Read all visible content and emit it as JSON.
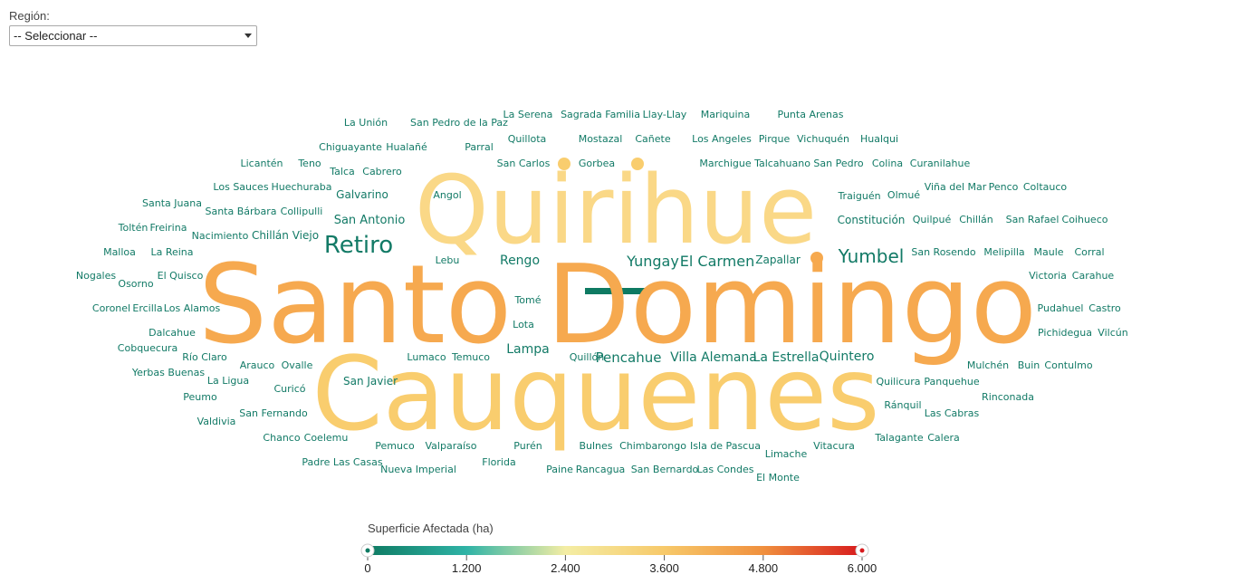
{
  "filter": {
    "label": "Región:",
    "selected": "-- Seleccionar --"
  },
  "chart_data": {
    "type": "wordcloud",
    "color_stops": [
      "#0e7a62",
      "#2fb3a6",
      "#f4eda4",
      "#f7c96a",
      "#f0903e",
      "#d7191c"
    ],
    "legend": {
      "title": "Superficie Afectada (ha)",
      "min": 0,
      "max": 6000,
      "ticks": [
        "0",
        "1.200",
        "2.400",
        "3.600",
        "4.800",
        "6.000"
      ]
    },
    "words": [
      {
        "text": "Santo Domingo",
        "size": 120,
        "color": "#f6a94f"
      },
      {
        "text": "Cauquenes",
        "size": 112,
        "color": "#f9cd6e"
      },
      {
        "text": "Quirihue",
        "size": 104,
        "color": "#fad887"
      },
      {
        "text": "Retiro",
        "size": 26,
        "color": "#127a66"
      },
      {
        "text": "Yumbel",
        "size": 20,
        "color": "#127a66"
      },
      {
        "text": "Yungay",
        "size": 16,
        "color": "#127a66"
      },
      {
        "text": "El Carmen",
        "size": 16,
        "color": "#127a66"
      },
      {
        "text": "Pencahue",
        "size": 15,
        "color": "#127a66"
      },
      {
        "text": "Rengo",
        "size": 14,
        "color": "#127a66"
      },
      {
        "text": "Villa Alemana",
        "size": 14,
        "color": "#127a66"
      },
      {
        "text": "La Estrella",
        "size": 14,
        "color": "#127a66"
      },
      {
        "text": "Quintero",
        "size": 14,
        "color": "#127a66"
      },
      {
        "text": "Lampa",
        "size": 14,
        "color": "#127a66"
      },
      {
        "text": "San Antonio",
        "size": 13,
        "color": "#127a66"
      },
      {
        "text": "Zapallar",
        "size": 12,
        "color": "#127a66"
      },
      {
        "text": "Constitución",
        "size": 12,
        "color": "#127a66"
      },
      {
        "text": "San Javier",
        "size": 12,
        "color": "#127a66"
      },
      {
        "text": "Chillán Viejo",
        "size": 12,
        "color": "#127a66"
      },
      {
        "text": "Galvarino",
        "size": 12,
        "color": "#127a66"
      },
      {
        "text": "Gorbea",
        "size": 11,
        "color": "#127a66"
      },
      {
        "text": "San Carlos",
        "size": 11,
        "color": "#127a66"
      },
      {
        "text": "Quillota",
        "size": 11,
        "color": "#127a66"
      },
      {
        "text": "Mostazal",
        "size": 11,
        "color": "#127a66"
      },
      {
        "text": "Cañete",
        "size": 11,
        "color": "#127a66"
      },
      {
        "text": "Angol",
        "size": 11,
        "color": "#127a66"
      },
      {
        "text": "Lumaco",
        "size": 11,
        "color": "#127a66"
      },
      {
        "text": "Temuco",
        "size": 11,
        "color": "#127a66"
      },
      {
        "text": "Ovalle",
        "size": 11,
        "color": "#127a66"
      },
      {
        "text": "Arauco",
        "size": 11,
        "color": "#127a66"
      },
      {
        "text": "Curicó",
        "size": 11,
        "color": "#127a66"
      },
      {
        "text": "La Ligua",
        "size": 11,
        "color": "#127a66"
      },
      {
        "text": "Río Claro",
        "size": 11,
        "color": "#127a66"
      },
      {
        "text": "Purén",
        "size": 11,
        "color": "#127a66"
      },
      {
        "text": "Bulnes",
        "size": 11,
        "color": "#127a66"
      },
      {
        "text": "Chimbarongo",
        "size": 11,
        "color": "#127a66"
      },
      {
        "text": "Isla de Pascua",
        "size": 11,
        "color": "#127a66"
      },
      {
        "text": "Vitacura",
        "size": 11,
        "color": "#127a66"
      },
      {
        "text": "Limache",
        "size": 11,
        "color": "#127a66"
      },
      {
        "text": "El Monte",
        "size": 11,
        "color": "#127a66"
      },
      {
        "text": "Quilicura",
        "size": 11,
        "color": "#127a66"
      },
      {
        "text": "Panquehue",
        "size": 11,
        "color": "#127a66"
      },
      {
        "text": "Rinconada",
        "size": 11,
        "color": "#127a66"
      },
      {
        "text": "Mulchén",
        "size": 11,
        "color": "#127a66"
      },
      {
        "text": "Buin",
        "size": 11,
        "color": "#127a66"
      },
      {
        "text": "Contulmo",
        "size": 11,
        "color": "#127a66"
      },
      {
        "text": "Ránquil",
        "size": 11,
        "color": "#127a66"
      },
      {
        "text": "Las Cabras",
        "size": 11,
        "color": "#127a66"
      },
      {
        "text": "Talagante",
        "size": 11,
        "color": "#127a66"
      },
      {
        "text": "Calera",
        "size": 11,
        "color": "#127a66"
      },
      {
        "text": "Pudahuel",
        "size": 11,
        "color": "#127a66"
      },
      {
        "text": "Castro",
        "size": 11,
        "color": "#127a66"
      },
      {
        "text": "Pichidegua",
        "size": 11,
        "color": "#127a66"
      },
      {
        "text": "Vilcún",
        "size": 11,
        "color": "#127a66"
      },
      {
        "text": "Victoria",
        "size": 11,
        "color": "#127a66"
      },
      {
        "text": "Carahue",
        "size": 11,
        "color": "#127a66"
      },
      {
        "text": "San Rosendo",
        "size": 11,
        "color": "#127a66"
      },
      {
        "text": "Melipilla",
        "size": 11,
        "color": "#127a66"
      },
      {
        "text": "Maule",
        "size": 11,
        "color": "#127a66"
      },
      {
        "text": "Corral",
        "size": 11,
        "color": "#127a66"
      },
      {
        "text": "Quilpué",
        "size": 11,
        "color": "#127a66"
      },
      {
        "text": "Chillán",
        "size": 11,
        "color": "#127a66"
      },
      {
        "text": "San Rafael",
        "size": 11,
        "color": "#127a66"
      },
      {
        "text": "Coihueco",
        "size": 11,
        "color": "#127a66"
      },
      {
        "text": "Traiguén",
        "size": 11,
        "color": "#127a66"
      },
      {
        "text": "Olmué",
        "size": 11,
        "color": "#127a66"
      },
      {
        "text": "Viña del Mar",
        "size": 11,
        "color": "#127a66"
      },
      {
        "text": "Penco",
        "size": 11,
        "color": "#127a66"
      },
      {
        "text": "Coltauco",
        "size": 11,
        "color": "#127a66"
      },
      {
        "text": "Marchigue",
        "size": 11,
        "color": "#127a66"
      },
      {
        "text": "Talcahuano",
        "size": 11,
        "color": "#127a66"
      },
      {
        "text": "San Pedro",
        "size": 11,
        "color": "#127a66"
      },
      {
        "text": "Colina",
        "size": 11,
        "color": "#127a66"
      },
      {
        "text": "Curanilahue",
        "size": 11,
        "color": "#127a66"
      },
      {
        "text": "Los Angeles",
        "size": 11,
        "color": "#127a66"
      },
      {
        "text": "Pirque",
        "size": 11,
        "color": "#127a66"
      },
      {
        "text": "Vichuquén",
        "size": 11,
        "color": "#127a66"
      },
      {
        "text": "Hualqui",
        "size": 11,
        "color": "#127a66"
      },
      {
        "text": "La Serena",
        "size": 11,
        "color": "#127a66"
      },
      {
        "text": "Sagrada Familia",
        "size": 11,
        "color": "#127a66"
      },
      {
        "text": "Llay-Llay",
        "size": 11,
        "color": "#127a66"
      },
      {
        "text": "Mariquina",
        "size": 11,
        "color": "#127a66"
      },
      {
        "text": "Punta Arenas",
        "size": 11,
        "color": "#127a66"
      },
      {
        "text": "La Unión",
        "size": 11,
        "color": "#127a66"
      },
      {
        "text": "San Pedro de la Paz",
        "size": 11,
        "color": "#127a66"
      },
      {
        "text": "Chiguayante",
        "size": 11,
        "color": "#127a66"
      },
      {
        "text": "Hualañé",
        "size": 11,
        "color": "#127a66"
      },
      {
        "text": "Parral",
        "size": 11,
        "color": "#127a66"
      },
      {
        "text": "Licantén",
        "size": 11,
        "color": "#127a66"
      },
      {
        "text": "Teno",
        "size": 11,
        "color": "#127a66"
      },
      {
        "text": "Talca",
        "size": 11,
        "color": "#127a66"
      },
      {
        "text": "Cabrero",
        "size": 11,
        "color": "#127a66"
      },
      {
        "text": "Los Sauces",
        "size": 11,
        "color": "#127a66"
      },
      {
        "text": "Huechuraba",
        "size": 11,
        "color": "#127a66"
      },
      {
        "text": "Santa Juana",
        "size": 11,
        "color": "#127a66"
      },
      {
        "text": "Santa Bárbara",
        "size": 11,
        "color": "#127a66"
      },
      {
        "text": "Collipulli",
        "size": 11,
        "color": "#127a66"
      },
      {
        "text": "Toltén",
        "size": 11,
        "color": "#127a66"
      },
      {
        "text": "Freirina",
        "size": 11,
        "color": "#127a66"
      },
      {
        "text": "Nacimiento",
        "size": 11,
        "color": "#127a66"
      },
      {
        "text": "Malloa",
        "size": 11,
        "color": "#127a66"
      },
      {
        "text": "La Reina",
        "size": 11,
        "color": "#127a66"
      },
      {
        "text": "Nogales",
        "size": 11,
        "color": "#127a66"
      },
      {
        "text": "El Quisco",
        "size": 11,
        "color": "#127a66"
      },
      {
        "text": "Osorno",
        "size": 11,
        "color": "#127a66"
      },
      {
        "text": "Lebu",
        "size": 11,
        "color": "#127a66"
      },
      {
        "text": "Tomé",
        "size": 11,
        "color": "#127a66"
      },
      {
        "text": "Lota",
        "size": 11,
        "color": "#127a66"
      },
      {
        "text": "Coronel",
        "size": 11,
        "color": "#127a66"
      },
      {
        "text": "Ercilla",
        "size": 11,
        "color": "#127a66"
      },
      {
        "text": "Los Alamos",
        "size": 11,
        "color": "#127a66"
      },
      {
        "text": "Dalcahue",
        "size": 11,
        "color": "#127a66"
      },
      {
        "text": "Cobquecura",
        "size": 11,
        "color": "#127a66"
      },
      {
        "text": "Yerbas Buenas",
        "size": 11,
        "color": "#127a66"
      },
      {
        "text": "Peumo",
        "size": 11,
        "color": "#127a66"
      },
      {
        "text": "San Fernando",
        "size": 11,
        "color": "#127a66"
      },
      {
        "text": "Valdivia",
        "size": 11,
        "color": "#127a66"
      },
      {
        "text": "Chanco",
        "size": 11,
        "color": "#127a66"
      },
      {
        "text": "Coelemu",
        "size": 11,
        "color": "#127a66"
      },
      {
        "text": "Padre Las Casas",
        "size": 11,
        "color": "#127a66"
      },
      {
        "text": "Pemuco",
        "size": 11,
        "color": "#127a66"
      },
      {
        "text": "Valparaíso",
        "size": 11,
        "color": "#127a66"
      },
      {
        "text": "Nueva Imperial",
        "size": 11,
        "color": "#127a66"
      },
      {
        "text": "Florida",
        "size": 11,
        "color": "#127a66"
      },
      {
        "text": "Paine",
        "size": 11,
        "color": "#127a66"
      },
      {
        "text": "Rancagua",
        "size": 11,
        "color": "#127a66"
      },
      {
        "text": "San Bernardo",
        "size": 11,
        "color": "#127a66"
      },
      {
        "text": "Las Condes",
        "size": 11,
        "color": "#127a66"
      },
      {
        "text": "Quillón",
        "size": 11,
        "color": "#127a66"
      }
    ]
  }
}
